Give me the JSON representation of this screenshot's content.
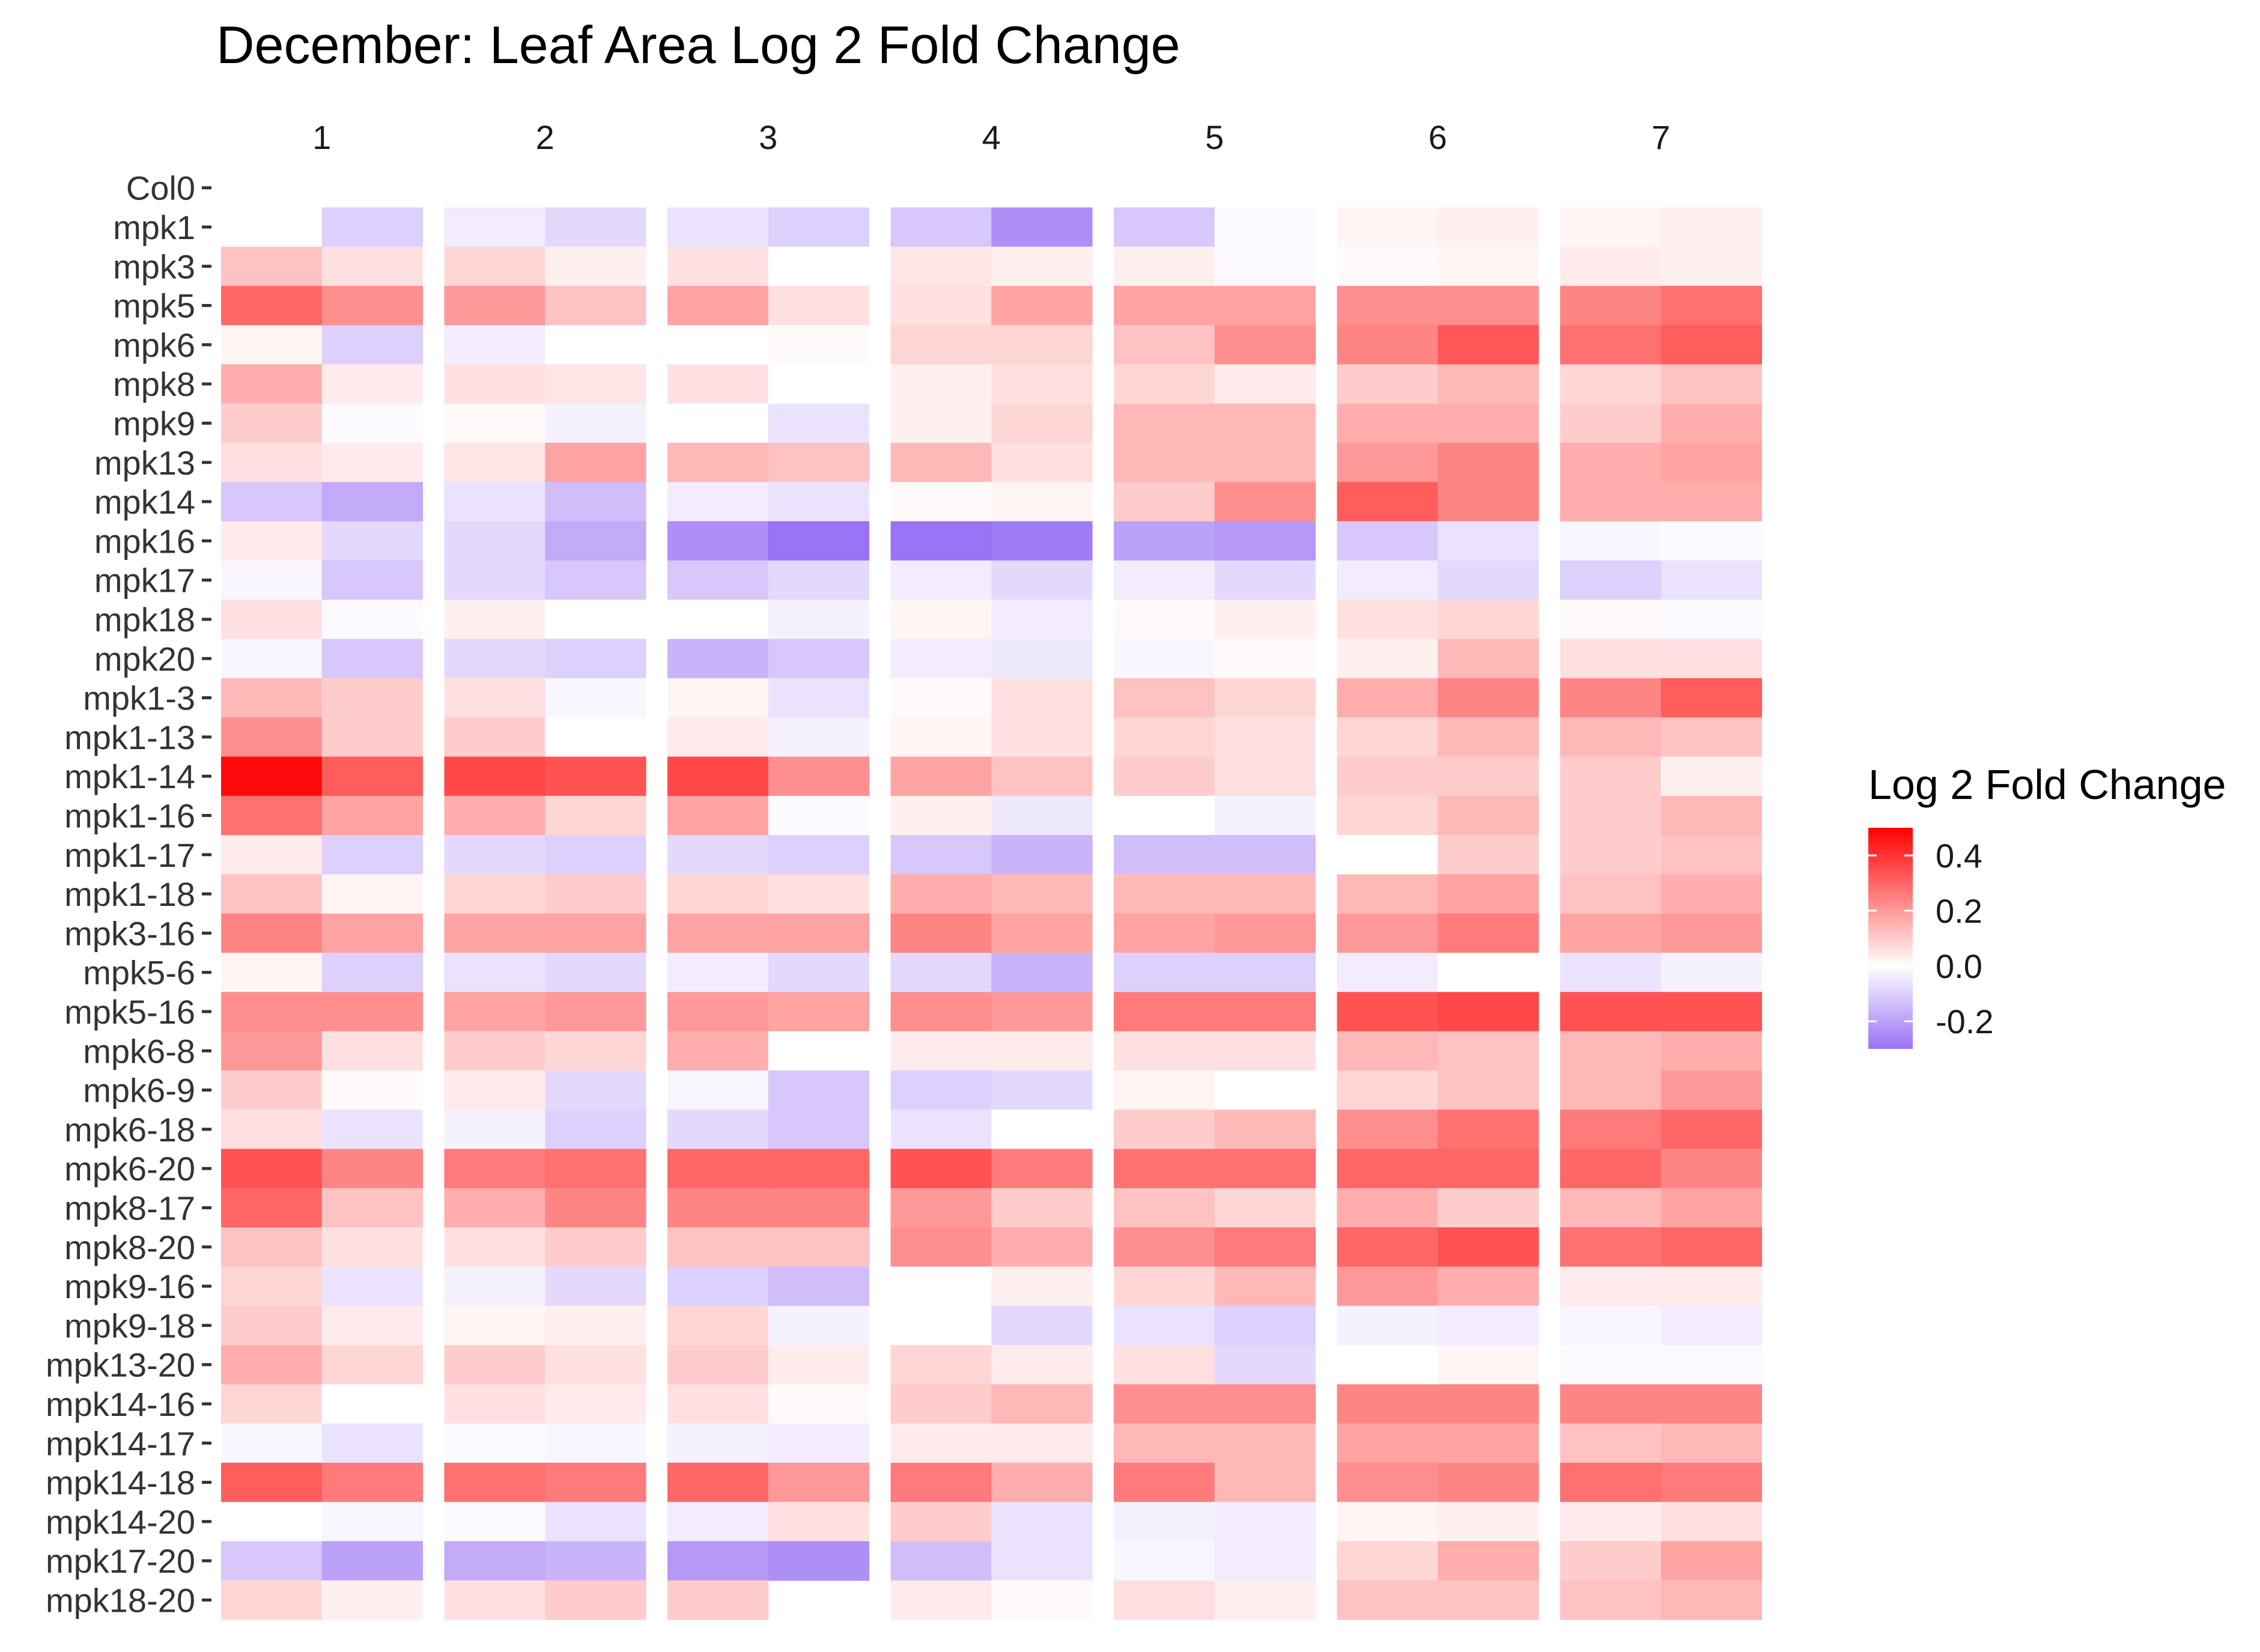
{
  "chart_data": {
    "type": "heatmap",
    "title": "December: Leaf Area Log 2 Fold Change",
    "xlabel": "",
    "ylabel": "",
    "facets": [
      "1",
      "2",
      "3",
      "4",
      "5",
      "6",
      "7"
    ],
    "columns_per_facet": 2,
    "rows": [
      "Col0",
      "mpk1",
      "mpk3",
      "mpk5",
      "mpk6",
      "mpk8",
      "mpk9",
      "mpk13",
      "mpk14",
      "mpk16",
      "mpk17",
      "mpk18",
      "mpk20",
      "mpk1-3",
      "mpk1-13",
      "mpk1-14",
      "mpk1-16",
      "mpk1-17",
      "mpk1-18",
      "mpk3-16",
      "mpk5-6",
      "mpk5-16",
      "mpk6-8",
      "mpk6-9",
      "mpk6-18",
      "mpk6-20",
      "mpk8-17",
      "mpk8-20",
      "mpk9-16",
      "mpk9-18",
      "mpk13-20",
      "mpk14-16",
      "mpk14-17",
      "mpk14-18",
      "mpk14-20",
      "mpk17-20",
      "mpk18-20"
    ],
    "values": [
      [
        null,
        null,
        null,
        null,
        null,
        null,
        null,
        null,
        null,
        null,
        null,
        null,
        null,
        null
      ],
      [
        null,
        -0.1,
        -0.04,
        -0.08,
        -0.06,
        -0.1,
        -0.12,
        -0.24,
        -0.12,
        -0.01,
        0.02,
        0.03,
        0.02,
        0.03
      ],
      [
        0.12,
        0.06,
        0.08,
        0.03,
        0.06,
        0.0,
        0.05,
        0.03,
        0.03,
        -0.01,
        0.01,
        0.02,
        0.04,
        0.03
      ],
      [
        0.3,
        0.22,
        0.2,
        0.12,
        0.18,
        0.06,
        0.06,
        0.18,
        0.18,
        0.18,
        0.22,
        0.22,
        0.24,
        0.28
      ],
      [
        0.02,
        -0.1,
        -0.04,
        0.0,
        0.0,
        0.01,
        0.08,
        0.08,
        0.12,
        0.22,
        0.24,
        0.33,
        0.28,
        0.32
      ],
      [
        0.16,
        0.04,
        0.06,
        0.05,
        0.06,
        0.0,
        0.03,
        0.06,
        0.08,
        0.04,
        0.1,
        0.14,
        0.08,
        0.12
      ],
      [
        0.1,
        -0.01,
        0.01,
        -0.03,
        0.0,
        -0.06,
        0.03,
        0.08,
        0.14,
        0.14,
        0.16,
        0.16,
        0.1,
        0.16
      ],
      [
        0.06,
        0.04,
        0.05,
        0.18,
        0.14,
        0.12,
        0.14,
        0.06,
        0.14,
        0.14,
        0.2,
        0.24,
        0.16,
        0.18
      ],
      [
        -0.12,
        -0.18,
        -0.06,
        -0.14,
        -0.04,
        -0.06,
        0.01,
        0.02,
        0.1,
        0.22,
        0.32,
        0.24,
        0.16,
        0.16
      ],
      [
        0.04,
        -0.08,
        -0.08,
        -0.18,
        -0.24,
        -0.3,
        -0.34,
        -0.28,
        -0.2,
        -0.22,
        -0.12,
        -0.06,
        -0.02,
        -0.01
      ],
      [
        -0.02,
        -0.12,
        -0.08,
        -0.12,
        -0.12,
        -0.08,
        -0.04,
        -0.08,
        -0.04,
        -0.08,
        -0.04,
        -0.08,
        -0.1,
        -0.06
      ],
      [
        0.06,
        -0.01,
        0.03,
        0.0,
        0.0,
        -0.03,
        0.02,
        -0.04,
        0.01,
        0.03,
        0.06,
        0.08,
        0.01,
        -0.01
      ],
      [
        -0.02,
        -0.12,
        -0.08,
        -0.1,
        -0.16,
        -0.12,
        -0.04,
        -0.05,
        -0.02,
        0.01,
        0.03,
        0.14,
        0.06,
        0.06
      ],
      [
        0.14,
        0.1,
        0.06,
        -0.02,
        0.02,
        -0.06,
        0.01,
        0.06,
        0.12,
        0.08,
        0.16,
        0.24,
        0.24,
        0.32
      ],
      [
        0.22,
        0.1,
        0.1,
        0.0,
        0.04,
        -0.03,
        0.02,
        0.06,
        0.08,
        0.06,
        0.08,
        0.14,
        0.14,
        0.12
      ],
      [
        0.48,
        0.32,
        0.36,
        0.34,
        0.36,
        0.22,
        0.18,
        0.12,
        0.1,
        0.06,
        0.1,
        0.1,
        0.1,
        0.03
      ],
      [
        0.28,
        0.18,
        0.16,
        0.08,
        0.18,
        -0.01,
        0.03,
        -0.05,
        0.0,
        -0.03,
        0.08,
        0.14,
        0.1,
        0.14
      ],
      [
        0.04,
        -0.1,
        -0.08,
        -0.1,
        -0.08,
        -0.1,
        -0.12,
        -0.16,
        -0.14,
        -0.14,
        0.0,
        0.1,
        0.1,
        0.12
      ],
      [
        0.12,
        0.02,
        0.08,
        0.1,
        0.08,
        0.06,
        0.16,
        0.14,
        0.14,
        0.14,
        0.14,
        0.18,
        0.12,
        0.16
      ],
      [
        0.24,
        0.18,
        0.18,
        0.18,
        0.18,
        0.18,
        0.24,
        0.18,
        0.18,
        0.2,
        0.2,
        0.26,
        0.18,
        0.2
      ],
      [
        0.02,
        -0.1,
        -0.06,
        -0.08,
        -0.04,
        -0.08,
        -0.08,
        -0.16,
        -0.1,
        -0.1,
        -0.04,
        0.0,
        -0.06,
        -0.03
      ],
      [
        0.22,
        0.22,
        0.18,
        0.2,
        0.2,
        0.18,
        0.22,
        0.2,
        0.26,
        0.26,
        0.34,
        0.36,
        0.34,
        0.34
      ],
      [
        0.2,
        0.06,
        0.1,
        0.08,
        0.16,
        0.0,
        0.04,
        0.04,
        0.06,
        0.06,
        0.14,
        0.12,
        0.14,
        0.16
      ],
      [
        0.1,
        0.01,
        0.04,
        -0.08,
        -0.02,
        -0.12,
        -0.1,
        -0.08,
        0.02,
        0.0,
        0.08,
        0.12,
        0.14,
        0.2
      ],
      [
        0.06,
        -0.06,
        -0.03,
        -0.1,
        -0.08,
        -0.12,
        -0.06,
        0.0,
        0.1,
        0.14,
        0.22,
        0.28,
        0.26,
        0.3
      ],
      [
        0.34,
        0.24,
        0.26,
        0.28,
        0.3,
        0.3,
        0.34,
        0.26,
        0.28,
        0.28,
        0.3,
        0.3,
        0.3,
        0.24
      ],
      [
        0.3,
        0.12,
        0.16,
        0.24,
        0.24,
        0.24,
        0.2,
        0.1,
        0.12,
        0.08,
        0.16,
        0.1,
        0.14,
        0.18
      ],
      [
        0.12,
        0.06,
        0.06,
        0.1,
        0.12,
        0.12,
        0.22,
        0.16,
        0.22,
        0.26,
        0.3,
        0.34,
        0.28,
        0.3
      ],
      [
        0.08,
        -0.06,
        -0.03,
        -0.08,
        -0.1,
        -0.14,
        0.0,
        0.03,
        0.08,
        0.14,
        0.2,
        0.16,
        0.04,
        0.04
      ],
      [
        0.1,
        0.04,
        0.02,
        0.03,
        0.08,
        -0.03,
        0.0,
        -0.08,
        -0.06,
        -0.1,
        -0.03,
        -0.04,
        -0.02,
        -0.04
      ],
      [
        0.16,
        0.08,
        0.1,
        0.06,
        0.1,
        0.04,
        0.08,
        0.04,
        0.06,
        -0.08,
        0.0,
        0.02,
        -0.01,
        -0.01
      ],
      [
        0.08,
        0.0,
        0.06,
        0.04,
        0.06,
        0.01,
        0.1,
        0.14,
        0.22,
        0.22,
        0.24,
        0.24,
        0.24,
        0.24
      ],
      [
        -0.02,
        -0.06,
        -0.01,
        -0.02,
        -0.03,
        -0.04,
        0.04,
        0.04,
        0.14,
        0.14,
        0.18,
        0.18,
        0.12,
        0.14
      ],
      [
        0.32,
        0.26,
        0.28,
        0.26,
        0.3,
        0.2,
        0.26,
        0.16,
        0.26,
        0.14,
        0.22,
        0.24,
        0.28,
        0.26
      ],
      [
        0.0,
        -0.02,
        -0.01,
        -0.06,
        -0.04,
        0.06,
        0.1,
        -0.06,
        -0.03,
        -0.04,
        0.02,
        0.03,
        0.04,
        0.06
      ],
      [
        -0.12,
        -0.2,
        -0.18,
        -0.16,
        -0.22,
        -0.24,
        -0.14,
        -0.06,
        -0.02,
        -0.04,
        0.08,
        0.16,
        0.1,
        0.18
      ],
      [
        0.08,
        0.03,
        0.06,
        0.1,
        0.1,
        null,
        0.04,
        0.01,
        0.06,
        0.03,
        0.12,
        0.12,
        0.12,
        0.14
      ]
    ],
    "legend": {
      "title": "Log 2 Fold Change",
      "ticks": [
        "0.4",
        "0.2",
        "0.0",
        "-0.2"
      ],
      "tick_values": [
        0.4,
        0.2,
        0.0,
        -0.2
      ],
      "range": [
        -0.3,
        0.5
      ],
      "colors": {
        "low": "#9a72f5",
        "mid": "#ffffff",
        "high": "#ff0000"
      },
      "placement": "right"
    },
    "grid": false
  }
}
